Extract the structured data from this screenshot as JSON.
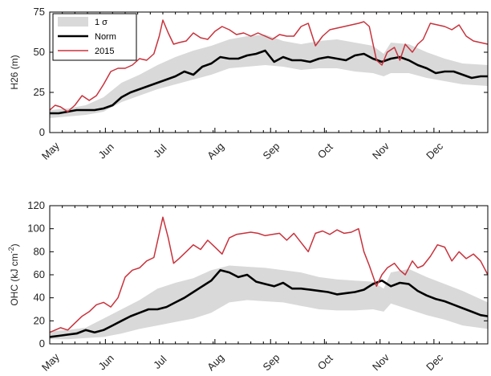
{
  "colors": {
    "band": "#d9d9d9",
    "norm": "#000000",
    "y2015": "#c8323c",
    "axis": "#000000"
  },
  "chart_data": [
    {
      "type": "line",
      "id": "top",
      "ylabel": "H26 (m)",
      "ylim": [
        0,
        75
      ],
      "yticks": [
        0,
        25,
        50,
        75
      ],
      "xlim": [
        0,
        244
      ],
      "x_ticks": [
        {
          "x": 0,
          "label": "May"
        },
        {
          "x": 31,
          "label": "Jun"
        },
        {
          "x": 61,
          "label": "Jul"
        },
        {
          "x": 92,
          "label": "Aug"
        },
        {
          "x": 123,
          "label": "Sep"
        },
        {
          "x": 153,
          "label": "Oct"
        },
        {
          "x": 184,
          "label": "Nov"
        },
        {
          "x": 214,
          "label": "Dec"
        }
      ],
      "legend": {
        "position": "top-left",
        "entries": [
          "1 σ",
          "Norm",
          "2015"
        ]
      },
      "band": {
        "name": "1 σ",
        "x": [
          0,
          10,
          20,
          30,
          40,
          50,
          60,
          70,
          80,
          90,
          100,
          110,
          120,
          130,
          140,
          150,
          160,
          170,
          180,
          186,
          190,
          200,
          210,
          220,
          230,
          244
        ],
        "lower": [
          9,
          10,
          11,
          13,
          19,
          23,
          27,
          30,
          33,
          36,
          40,
          41,
          42,
          41,
          39,
          40,
          40,
          38,
          37,
          35,
          37,
          37,
          34,
          32,
          30,
          29
        ],
        "upper": [
          14,
          15,
          17,
          22,
          31,
          36,
          42,
          47,
          51,
          54,
          58,
          60,
          61,
          57,
          55,
          57,
          58,
          56,
          54,
          49,
          56,
          55,
          50,
          46,
          43,
          42
        ]
      },
      "series": [
        {
          "name": "Norm",
          "x": [
            0,
            5,
            10,
            15,
            20,
            25,
            30,
            35,
            40,
            45,
            50,
            55,
            60,
            65,
            70,
            75,
            80,
            85,
            90,
            95,
            100,
            105,
            110,
            115,
            120,
            125,
            130,
            135,
            140,
            145,
            150,
            155,
            160,
            165,
            170,
            175,
            180,
            185,
            190,
            195,
            200,
            205,
            210,
            215,
            220,
            225,
            230,
            235,
            240,
            244
          ],
          "y": [
            12,
            12,
            13,
            14,
            14,
            14,
            15,
            17,
            22,
            25,
            27,
            29,
            31,
            33,
            35,
            38,
            36,
            41,
            43,
            47,
            46,
            46,
            48,
            49,
            51,
            44,
            47,
            45,
            45,
            44,
            46,
            47,
            46,
            45,
            48,
            49,
            46,
            44,
            46,
            47,
            45,
            42,
            40,
            37,
            38,
            38,
            36,
            34,
            35,
            35
          ]
        },
        {
          "name": "2015",
          "x": [
            0,
            3,
            6,
            10,
            14,
            18,
            22,
            26,
            30,
            34,
            38,
            42,
            46,
            50,
            54,
            58,
            61,
            63,
            66,
            69,
            72,
            76,
            80,
            84,
            88,
            92,
            96,
            100,
            104,
            108,
            112,
            116,
            120,
            124,
            128,
            132,
            136,
            140,
            144,
            148,
            152,
            156,
            160,
            164,
            168,
            172,
            175,
            178,
            182,
            185,
            188,
            192,
            195,
            198,
            202,
            205,
            208,
            212,
            216,
            220,
            224,
            228,
            232,
            236,
            240,
            244
          ],
          "y": [
            14,
            17,
            16,
            13,
            17,
            23,
            20,
            23,
            30,
            38,
            40,
            40,
            42,
            46,
            45,
            49,
            60,
            70,
            62,
            55,
            56,
            57,
            62,
            59,
            58,
            63,
            66,
            64,
            61,
            62,
            60,
            62,
            60,
            58,
            61,
            60,
            60,
            66,
            68,
            54,
            60,
            64,
            65,
            66,
            67,
            68,
            69,
            66,
            45,
            42,
            50,
            53,
            45,
            55,
            50,
            55,
            58,
            68,
            67,
            66,
            64,
            67,
            60,
            57,
            56,
            55
          ]
        }
      ]
    },
    {
      "type": "line",
      "id": "bottom",
      "ylabel": "OHC (kJ cm",
      "ylabel_sup": "-2",
      "ylabel_end": ")",
      "ylim": [
        0,
        120
      ],
      "yticks": [
        0,
        20,
        40,
        60,
        80,
        100,
        120
      ],
      "xlim": [
        0,
        244
      ],
      "x_ticks": [
        {
          "x": 0,
          "label": "May"
        },
        {
          "x": 31,
          "label": "Jun"
        },
        {
          "x": 61,
          "label": "Jul"
        },
        {
          "x": 92,
          "label": "Aug"
        },
        {
          "x": 123,
          "label": "Sep"
        },
        {
          "x": 153,
          "label": "Oct"
        },
        {
          "x": 184,
          "label": "Nov"
        },
        {
          "x": 214,
          "label": "Dec"
        }
      ],
      "band": {
        "name": "1 σ",
        "x": [
          0,
          10,
          20,
          30,
          40,
          50,
          60,
          70,
          80,
          90,
          100,
          110,
          120,
          130,
          140,
          150,
          160,
          170,
          180,
          186,
          190,
          200,
          210,
          220,
          230,
          244
        ],
        "lower": [
          4,
          4,
          5,
          6,
          9,
          13,
          16,
          19,
          22,
          27,
          36,
          38,
          37,
          36,
          33,
          30,
          29,
          29,
          30,
          28,
          35,
          30,
          25,
          21,
          16,
          13
        ],
        "upper": [
          11,
          12,
          14,
          22,
          30,
          38,
          48,
          53,
          57,
          64,
          68,
          67,
          66,
          64,
          62,
          58,
          56,
          55,
          54,
          48,
          62,
          65,
          58,
          52,
          46,
          36
        ]
      },
      "series": [
        {
          "name": "Norm",
          "x": [
            0,
            5,
            10,
            15,
            20,
            25,
            30,
            35,
            40,
            45,
            50,
            55,
            60,
            65,
            70,
            75,
            80,
            85,
            90,
            95,
            100,
            105,
            110,
            115,
            120,
            125,
            130,
            135,
            140,
            145,
            150,
            155,
            160,
            165,
            170,
            175,
            180,
            185,
            190,
            195,
            200,
            205,
            210,
            215,
            220,
            225,
            230,
            235,
            240,
            244
          ],
          "y": [
            6,
            7,
            8,
            9,
            12,
            10,
            12,
            16,
            20,
            24,
            27,
            30,
            30,
            32,
            36,
            40,
            45,
            50,
            55,
            64,
            62,
            58,
            60,
            54,
            52,
            50,
            53,
            48,
            48,
            47,
            46,
            45,
            43,
            44,
            45,
            47,
            52,
            55,
            50,
            53,
            52,
            46,
            42,
            39,
            37,
            34,
            31,
            28,
            25,
            24
          ]
        },
        {
          "name": "2015",
          "x": [
            0,
            3,
            6,
            10,
            14,
            18,
            22,
            26,
            30,
            34,
            38,
            42,
            46,
            50,
            54,
            58,
            61,
            63,
            66,
            69,
            72,
            76,
            80,
            84,
            88,
            92,
            96,
            100,
            104,
            108,
            112,
            116,
            120,
            124,
            128,
            132,
            136,
            140,
            144,
            148,
            152,
            156,
            160,
            164,
            168,
            172,
            175,
            178,
            182,
            185,
            188,
            192,
            195,
            198,
            202,
            205,
            208,
            212,
            216,
            220,
            224,
            228,
            232,
            236,
            240,
            244
          ],
          "y": [
            10,
            12,
            14,
            12,
            18,
            24,
            28,
            34,
            36,
            32,
            40,
            58,
            64,
            66,
            72,
            75,
            96,
            110,
            92,
            70,
            74,
            80,
            86,
            82,
            90,
            84,
            78,
            92,
            95,
            96,
            97,
            96,
            94,
            95,
            96,
            90,
            96,
            88,
            80,
            96,
            98,
            95,
            99,
            96,
            97,
            100,
            80,
            68,
            50,
            60,
            66,
            70,
            64,
            60,
            72,
            66,
            68,
            76,
            86,
            84,
            72,
            80,
            74,
            78,
            72,
            60
          ]
        }
      ]
    }
  ]
}
